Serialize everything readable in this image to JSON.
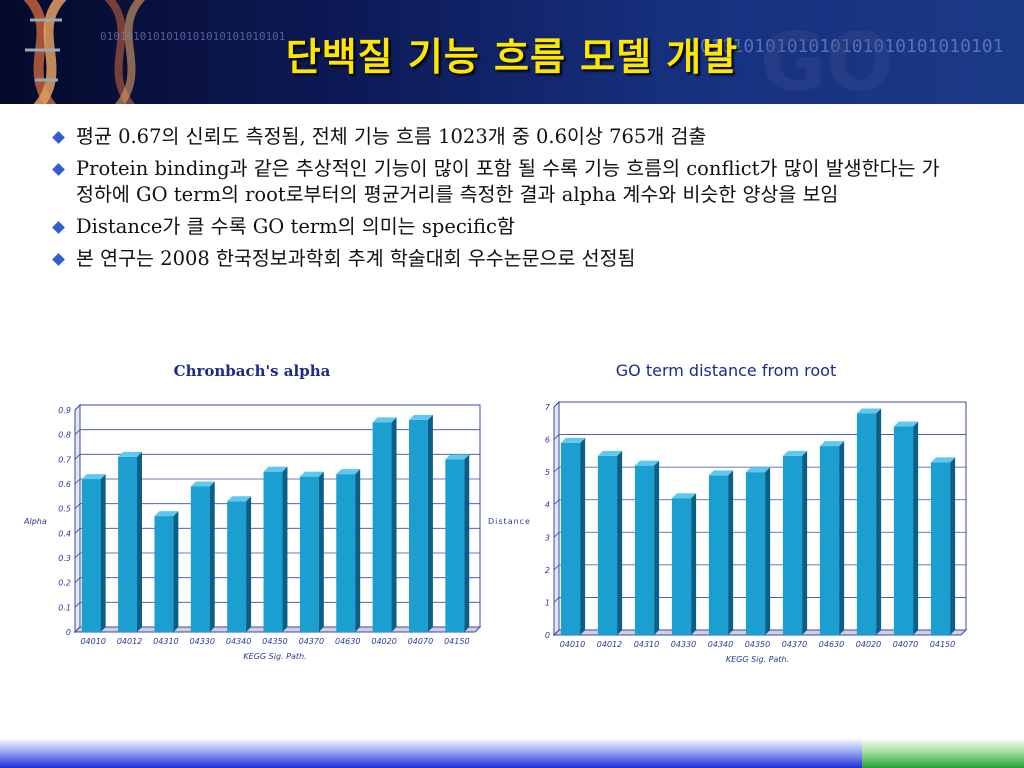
{
  "slide": {
    "title": "단백질 기능 흐름 모델 개발",
    "bullets": [
      "평균 0.67의 신뢰도 측정됨, 전체 기능 흐름 1023개 중 0.6이상 765개 검출",
      "Protein binding과 같은 추상적인 기능이 많이 포함 될 수록 기능 흐름의 conflict가 많이 발생한다는 가정하에 GO term의 root로부터의 평균거리를 측정한 결과 alpha 계수와 비슷한 양상을 보임",
      "Distance가 클 수록 GO term의 의미는 specific함",
      "본 연구는 2008 한국정보과학회 추계 학술대회 우수논문으로 선정됨"
    ],
    "header_binary": "0101010101010101010101010101"
  },
  "chart_data": [
    {
      "type": "bar",
      "title": "Chronbach's alpha",
      "xlabel": "KEGG Sig. Path.",
      "ylabel": "Alpha",
      "categories": [
        "04010",
        "04012",
        "04310",
        "04330",
        "04340",
        "04350",
        "04370",
        "04630",
        "04020",
        "04070",
        "04150"
      ],
      "values": [
        0.62,
        0.71,
        0.47,
        0.59,
        0.53,
        0.65,
        0.63,
        0.64,
        0.85,
        0.86,
        0.7
      ],
      "ylim": [
        0,
        0.9
      ],
      "yticks": [
        "0",
        "0.1",
        "0.2",
        "0.3",
        "0.4",
        "0.5",
        "0.6",
        "0.7",
        "0.8",
        "0.9"
      ],
      "grid": true,
      "bar_color": "#1a9fd0"
    },
    {
      "type": "bar",
      "title": "GO term distance from root",
      "xlabel": "KEGG Sig. Path.",
      "ylabel": "Distance",
      "categories": [
        "04010",
        "04012",
        "04310",
        "04330",
        "04340",
        "04350",
        "04370",
        "04630",
        "04020",
        "04070",
        "04150"
      ],
      "values": [
        5.9,
        5.5,
        5.2,
        4.2,
        4.9,
        5.0,
        5.5,
        5.8,
        6.8,
        6.4,
        5.3
      ],
      "ylim": [
        0,
        7
      ],
      "yticks": [
        "0",
        "1",
        "2",
        "3",
        "4",
        "5",
        "6",
        "7"
      ],
      "grid": true,
      "bar_color": "#1a9fd0"
    }
  ]
}
